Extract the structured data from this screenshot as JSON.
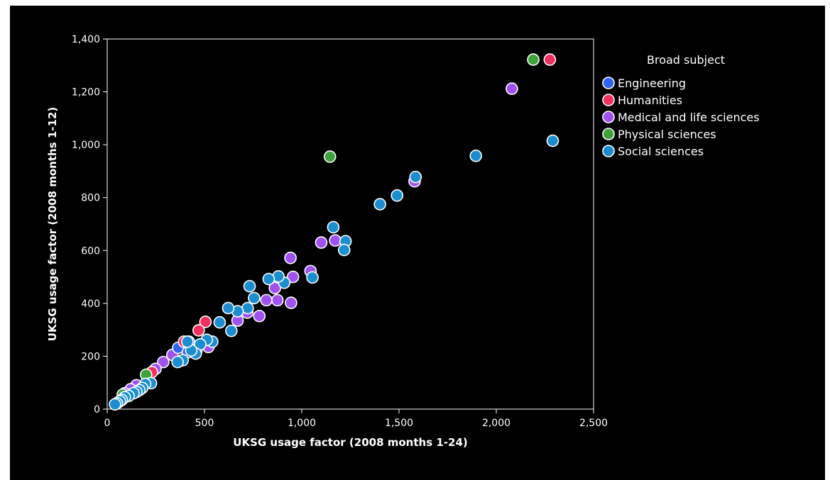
{
  "chart_data": {
    "type": "scatter",
    "xlabel": "UKSG usage factor (2008 months 1-24)",
    "ylabel": "UKSG usage factor (2008 months 1-12)",
    "xlim": [
      0,
      2500
    ],
    "ylim": [
      0,
      1400
    ],
    "x_ticks": [
      "0",
      "500",
      "1,000",
      "1,500",
      "2,000",
      "2,500"
    ],
    "y_ticks": [
      "0",
      "200",
      "400",
      "600",
      "800",
      "1,000",
      "1,200",
      "1,400"
    ],
    "grid": false,
    "legend": {
      "title": "Broad subject",
      "placement": "right",
      "entries": [
        "Engineering",
        "Humanities",
        "Medical and life sciences",
        "Physical sciences",
        "Social sciences"
      ]
    },
    "series": [
      {
        "name": "Engineering",
        "color": "#2f63f0",
        "points": [
          [
            365,
            232
          ],
          [
            415,
            215
          ],
          [
            420,
            255
          ],
          [
            458,
            220
          ]
        ]
      },
      {
        "name": "Humanities",
        "color": "#f0305e",
        "points": [
          [
            2275,
            1322
          ],
          [
            505,
            330
          ],
          [
            470,
            298
          ],
          [
            395,
            255
          ],
          [
            230,
            140
          ]
        ]
      },
      {
        "name": "Medical and life sciences",
        "color": "#9f52f0",
        "points": [
          [
            2080,
            1212
          ],
          [
            1580,
            862
          ],
          [
            1172,
            638
          ],
          [
            1100,
            630
          ],
          [
            1045,
            522
          ],
          [
            942,
            572
          ],
          [
            955,
            500
          ],
          [
            945,
            402
          ],
          [
            875,
            412
          ],
          [
            862,
            458
          ],
          [
            818,
            412
          ],
          [
            782,
            352
          ],
          [
            670,
            335
          ],
          [
            720,
            365
          ],
          [
            520,
            235
          ],
          [
            335,
            205
          ],
          [
            288,
            178
          ],
          [
            248,
            152
          ],
          [
            150,
            90
          ],
          [
            120,
            75
          ],
          [
            90,
            60
          ]
        ]
      },
      {
        "name": "Physical sciences",
        "color": "#3fa33d",
        "points": [
          [
            2190,
            1322
          ],
          [
            1145,
            955
          ],
          [
            200,
            130
          ],
          [
            80,
            55
          ]
        ]
      },
      {
        "name": "Social sciences",
        "color": "#1c8ecf",
        "points": [
          [
            2290,
            1015
          ],
          [
            1895,
            958
          ],
          [
            1585,
            878
          ],
          [
            1490,
            808
          ],
          [
            1402,
            775
          ],
          [
            1162,
            688
          ],
          [
            1225,
            635
          ],
          [
            1218,
            602
          ],
          [
            1055,
            498
          ],
          [
            910,
            478
          ],
          [
            880,
            502
          ],
          [
            830,
            492
          ],
          [
            755,
            420
          ],
          [
            732,
            465
          ],
          [
            722,
            382
          ],
          [
            670,
            370
          ],
          [
            638,
            296
          ],
          [
            622,
            382
          ],
          [
            578,
            328
          ],
          [
            540,
            255
          ],
          [
            512,
            262
          ],
          [
            478,
            245
          ],
          [
            455,
            210
          ],
          [
            432,
            222
          ],
          [
            412,
            255
          ],
          [
            388,
            185
          ],
          [
            362,
            178
          ],
          [
            225,
            98
          ],
          [
            195,
            95
          ],
          [
            180,
            80
          ],
          [
            165,
            72
          ],
          [
            150,
            65
          ],
          [
            135,
            60
          ],
          [
            110,
            50
          ],
          [
            90,
            45
          ],
          [
            75,
            35
          ],
          [
            65,
            30
          ],
          [
            50,
            22
          ],
          [
            40,
            18
          ]
        ]
      }
    ]
  }
}
